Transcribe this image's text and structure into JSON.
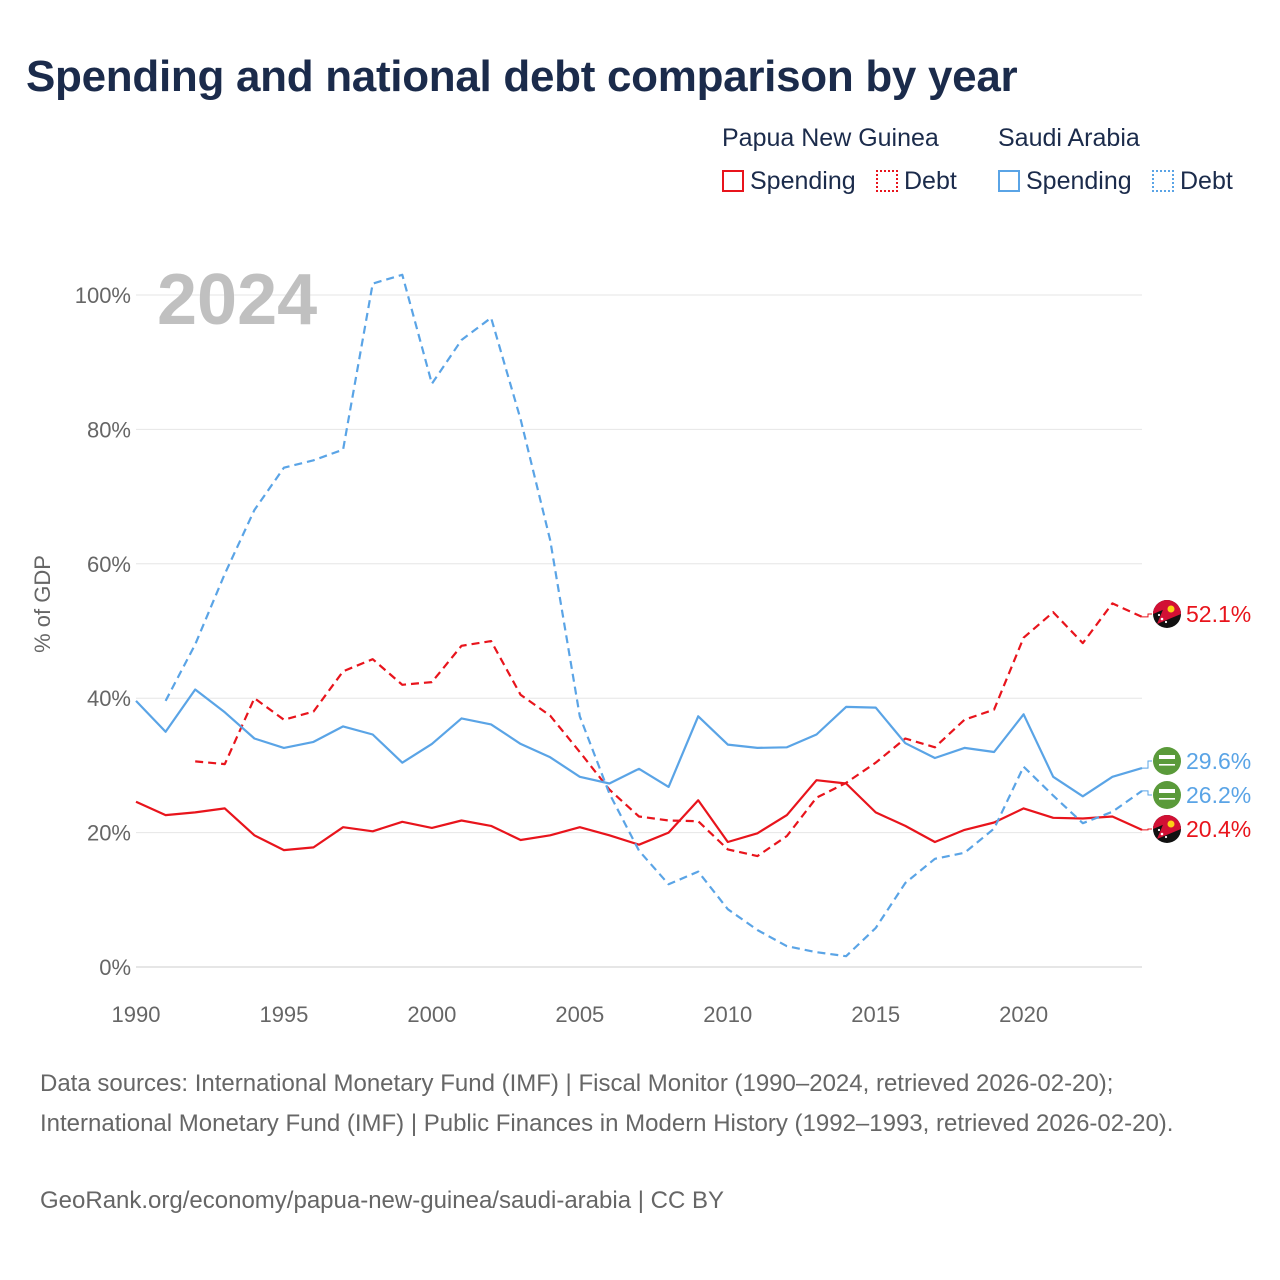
{
  "title": "Spending and national debt comparison by year",
  "legend": {
    "groups": [
      {
        "name": "Papua New Guinea",
        "items": [
          {
            "label": "Spending",
            "style": "solid"
          },
          {
            "label": "Debt",
            "style": "dotted"
          }
        ],
        "color": "#e8141c"
      },
      {
        "name": "Saudi Arabia",
        "items": [
          {
            "label": "Spending",
            "style": "solid"
          },
          {
            "label": "Debt",
            "style": "dotted"
          }
        ],
        "color": "#5aa4e6"
      }
    ]
  },
  "chart_data": {
    "type": "line",
    "title": "Spending and national debt comparison by year",
    "watermark_year": "2024",
    "xlabel": "",
    "ylabel": "% of GDP",
    "xlim": [
      1990,
      2024
    ],
    "ylim": [
      0,
      100
    ],
    "x_ticks": [
      1990,
      1995,
      2000,
      2005,
      2010,
      2015,
      2020
    ],
    "y_ticks": [
      0,
      20,
      40,
      60,
      80,
      100
    ],
    "y_tick_labels": [
      "0%",
      "20%",
      "40%",
      "60%",
      "80%",
      "100%"
    ],
    "series": [
      {
        "name": "Papua New Guinea Spending",
        "country": "Papua New Guinea",
        "measure": "Spending",
        "color": "#e8141c",
        "dash": "solid",
        "x": [
          1990,
          1991,
          1992,
          1993,
          1994,
          1995,
          1996,
          1997,
          1998,
          1999,
          2000,
          2001,
          2002,
          2003,
          2004,
          2005,
          2006,
          2007,
          2008,
          2009,
          2010,
          2011,
          2012,
          2013,
          2014,
          2015,
          2016,
          2017,
          2018,
          2019,
          2020,
          2021,
          2022,
          2023,
          2024
        ],
        "values": [
          24.6,
          22.6,
          23.0,
          23.6,
          19.6,
          17.4,
          17.8,
          20.8,
          20.2,
          21.6,
          20.7,
          21.8,
          21.0,
          18.9,
          19.6,
          20.8,
          19.6,
          18.2,
          20.0,
          24.8,
          18.6,
          19.9,
          22.6,
          27.8,
          27.3,
          23.0,
          21.0,
          18.6,
          20.4,
          21.5,
          23.6,
          22.2,
          22.1,
          22.4,
          20.4
        ],
        "end_label": "20.4%"
      },
      {
        "name": "Papua New Guinea Debt",
        "country": "Papua New Guinea",
        "measure": "Debt",
        "color": "#e8141c",
        "dash": "dashed",
        "x": [
          1992,
          1993,
          1994,
          1995,
          1996,
          1997,
          1998,
          1999,
          2000,
          2001,
          2002,
          2003,
          2004,
          2005,
          2006,
          2007,
          2008,
          2009,
          2010,
          2011,
          2012,
          2013,
          2014,
          2015,
          2016,
          2017,
          2018,
          2019,
          2020,
          2021,
          2022,
          2023,
          2024
        ],
        "values": [
          30.6,
          30.2,
          40.0,
          36.8,
          38.0,
          44.0,
          45.8,
          42.0,
          42.4,
          47.8,
          48.5,
          40.5,
          37.4,
          32.0,
          26.4,
          22.4,
          21.8,
          21.7,
          17.5,
          16.5,
          19.5,
          25.2,
          27.4,
          30.4,
          34.0,
          32.7,
          36.8,
          38.3,
          49.0,
          52.8,
          48.2,
          54.1,
          52.1
        ],
        "end_label": "52.1%"
      },
      {
        "name": "Saudi Arabia Spending",
        "country": "Saudi Arabia",
        "measure": "Spending",
        "color": "#5aa4e6",
        "dash": "solid",
        "x": [
          1990,
          1991,
          1992,
          1993,
          1994,
          1995,
          1996,
          1997,
          1998,
          1999,
          2000,
          2001,
          2002,
          2003,
          2004,
          2005,
          2006,
          2007,
          2008,
          2009,
          2010,
          2011,
          2012,
          2013,
          2014,
          2015,
          2016,
          2017,
          2018,
          2019,
          2020,
          2021,
          2022,
          2023,
          2024
        ],
        "values": [
          39.6,
          35.0,
          41.3,
          37.9,
          34.0,
          32.6,
          33.5,
          35.8,
          34.6,
          30.4,
          33.2,
          37.0,
          36.1,
          33.2,
          31.2,
          28.3,
          27.3,
          29.5,
          26.8,
          37.3,
          33.1,
          32.6,
          32.7,
          34.6,
          38.7,
          38.6,
          33.3,
          31.1,
          32.6,
          32.0,
          37.6,
          28.3,
          25.4,
          28.3,
          29.6
        ],
        "end_label": "29.6%"
      },
      {
        "name": "Saudi Arabia Debt",
        "country": "Saudi Arabia",
        "measure": "Debt",
        "color": "#5aa4e6",
        "dash": "dashed",
        "x": [
          1991,
          1992,
          1993,
          1994,
          1995,
          1996,
          1997,
          1998,
          1999,
          2000,
          2001,
          2002,
          2003,
          2004,
          2005,
          2006,
          2007,
          2008,
          2009,
          2010,
          2011,
          2012,
          2013,
          2014,
          2015,
          2016,
          2017,
          2018,
          2019,
          2020,
          2021,
          2022,
          2023,
          2024
        ],
        "values": [
          39.6,
          48.0,
          58.5,
          68.0,
          74.3,
          75.4,
          77.0,
          101.7,
          103.0,
          86.8,
          93.3,
          96.6,
          81.5,
          63.5,
          37.3,
          25.8,
          17.3,
          12.3,
          14.2,
          8.6,
          5.5,
          3.1,
          2.2,
          1.6,
          5.8,
          12.5,
          16.1,
          17.0,
          20.6,
          29.8,
          25.5,
          21.4,
          23.1,
          26.2
        ],
        "end_label": "26.2%"
      }
    ]
  },
  "footer": {
    "sources": "Data sources: International Monetary Fund (IMF) | Fiscal Monitor (1990–2024, retrieved 2026-02-20); International Monetary Fund (IMF) | Public Finances in Modern History (1992–1993, retrieved 2026-02-20).",
    "credit": "GeoRank.org/economy/papua-new-guinea/saudi-arabia | CC BY"
  }
}
